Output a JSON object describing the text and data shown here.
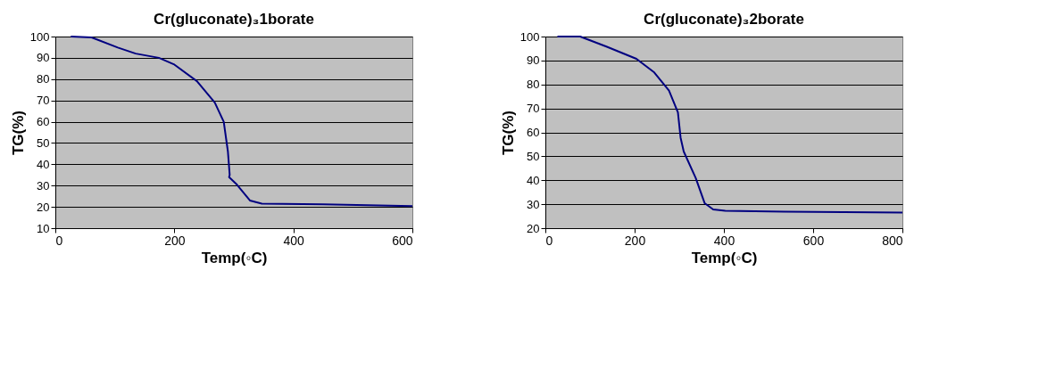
{
  "chart_data": [
    {
      "type": "line",
      "title": "Cr(gluconate)₃1borate",
      "xlabel": "Temp(◦C)",
      "ylabel": "TG(%)",
      "xlim": [
        0,
        600
      ],
      "xticks": [
        0,
        200,
        400,
        600
      ],
      "ylim": [
        10,
        100
      ],
      "yticks": [
        10,
        20,
        30,
        40,
        50,
        60,
        70,
        80,
        90,
        100
      ],
      "grid": "y",
      "series": [
        {
          "color": "#000080",
          "x": [
            26,
            61,
            105,
            135,
            174,
            199,
            238,
            268,
            283,
            290,
            293,
            292,
            305,
            327,
            347,
            450,
            600
          ],
          "values": [
            100,
            99.6,
            94.8,
            92,
            90,
            87,
            79,
            69,
            60,
            46,
            35,
            34,
            30.5,
            23,
            21.5,
            21.2,
            20.4
          ]
        }
      ]
    },
    {
      "type": "line",
      "title": "Cr(gluconate)₃2borate",
      "xlabel": "Temp(◦C)",
      "ylabel": "TG(%)",
      "xlim": [
        0,
        800
      ],
      "xticks": [
        0,
        200,
        400,
        600,
        800
      ],
      "ylim": [
        20,
        100
      ],
      "yticks": [
        20,
        30,
        40,
        50,
        60,
        70,
        80,
        90,
        100
      ],
      "grid": "y",
      "series": [
        {
          "color": "#000080",
          "x": [
            27,
            78,
            138,
            204,
            244,
            277,
            297,
            303,
            310,
            337,
            357,
            376,
            403,
            536,
            800
          ],
          "values": [
            100,
            100,
            95.7,
            90.7,
            85,
            77.4,
            68.3,
            57.8,
            52,
            40.9,
            30.4,
            27.8,
            27.3,
            26.9,
            26.5
          ]
        }
      ]
    }
  ]
}
